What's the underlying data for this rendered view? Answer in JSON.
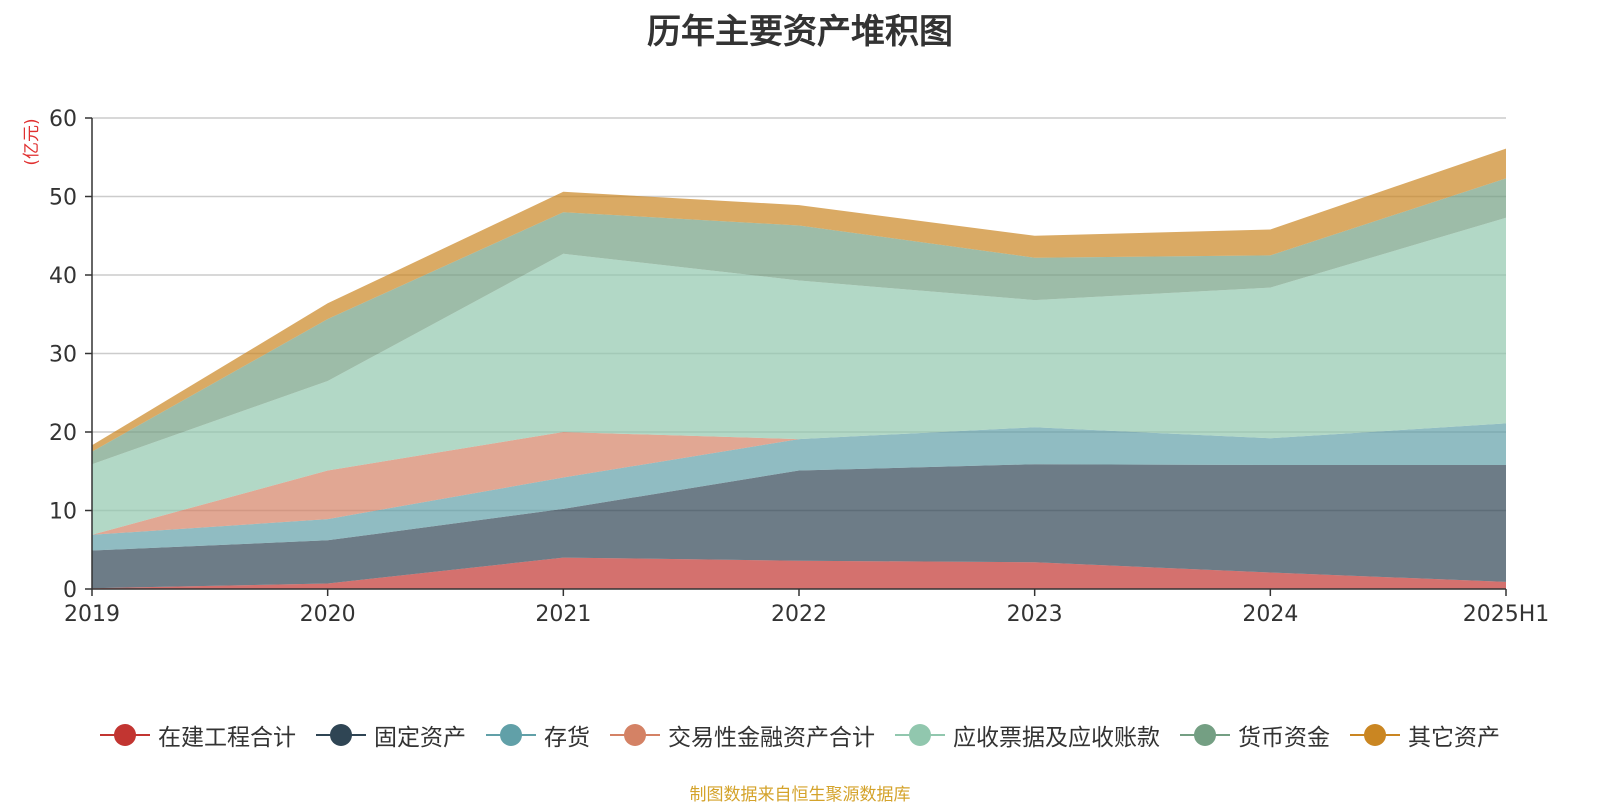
{
  "chart_data": {
    "type": "area",
    "stacked": true,
    "title": "历年主要资产堆积图",
    "ylabel": "(亿元)",
    "xlabel": "",
    "categories": [
      "2019",
      "2020",
      "2021",
      "2022",
      "2023",
      "2024",
      "2025H1"
    ],
    "ylim": [
      0,
      60
    ],
    "yticks": [
      0,
      10,
      20,
      30,
      40,
      50,
      60
    ],
    "grid": true,
    "legend_position": "bottom",
    "series": [
      {
        "name": "在建工程合计",
        "color": "#c23531",
        "values": [
          0.1,
          0.7,
          4.0,
          3.6,
          3.4,
          2.1,
          0.9
        ]
      },
      {
        "name": "固定资产",
        "color": "#2f4554",
        "values": [
          4.8,
          5.5,
          6.2,
          11.5,
          12.5,
          13.7,
          14.9
        ]
      },
      {
        "name": "存货",
        "color": "#61a0a8",
        "values": [
          2.0,
          2.7,
          4.0,
          4.0,
          4.7,
          3.4,
          5.3
        ]
      },
      {
        "name": "交易性金融资产合计",
        "color": "#d48265",
        "values": [
          0.0,
          6.2,
          5.8,
          0.0,
          0.0,
          0.0,
          0.0
        ]
      },
      {
        "name": "应收票据及应收账款",
        "color": "#91c7ae",
        "values": [
          9.0,
          11.4,
          22.7,
          20.2,
          16.2,
          19.2,
          26.2
        ]
      },
      {
        "name": "货币资金",
        "color": "#749f83",
        "values": [
          1.6,
          7.9,
          5.3,
          7.0,
          5.4,
          4.1,
          5.0
        ]
      },
      {
        "name": "其它资产",
        "color": "#ca8622",
        "values": [
          0.8,
          2.0,
          2.6,
          2.6,
          2.8,
          3.3,
          3.8
        ]
      }
    ]
  },
  "source_note": "制图数据来自恒生聚源数据库"
}
